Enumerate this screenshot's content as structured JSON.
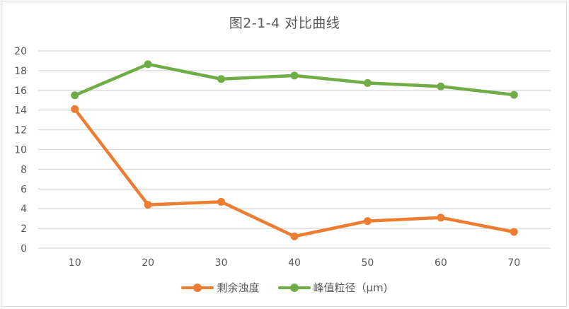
{
  "chart_data": {
    "type": "line",
    "title": "图2-1-4 对比曲线",
    "xlabel": "",
    "ylabel": "",
    "categories": [
      "10",
      "20",
      "30",
      "40",
      "50",
      "60",
      "70"
    ],
    "series": [
      {
        "name": "剩余浊度",
        "color": "#ED7D31",
        "values": [
          14.1,
          4.4,
          4.7,
          1.2,
          2.75,
          3.1,
          1.65
        ]
      },
      {
        "name": "峰值粒径（μm)",
        "color": "#70AD47",
        "values": [
          15.5,
          18.65,
          17.15,
          17.5,
          16.75,
          16.4,
          15.55
        ]
      }
    ],
    "ylim": [
      0,
      20
    ],
    "yticks": [
      0,
      2,
      4,
      6,
      8,
      10,
      12,
      14,
      16,
      18,
      20
    ],
    "grid": true,
    "legend_position": "bottom"
  },
  "colors": {
    "grid": "#D9D9D9",
    "text": "#595959",
    "border": "#D9D9D9"
  }
}
